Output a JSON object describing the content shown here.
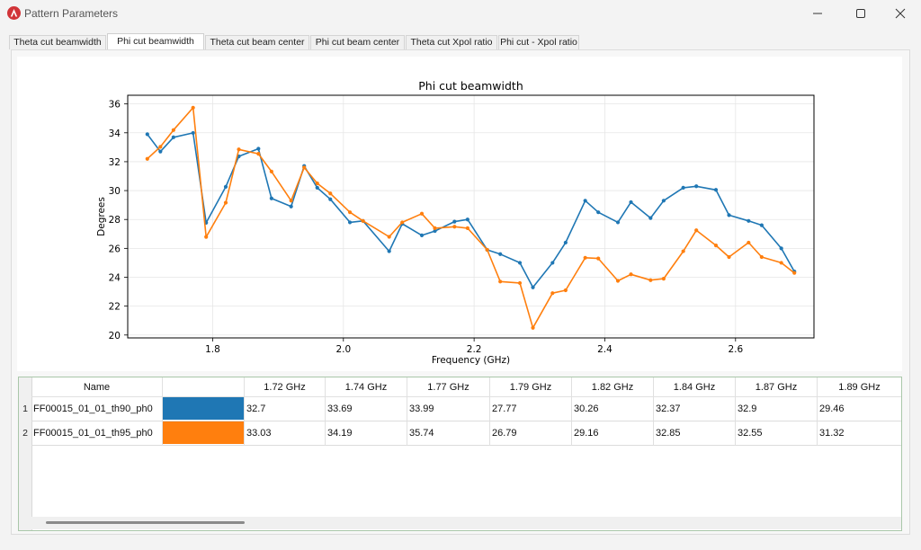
{
  "window": {
    "title": "Pattern Parameters"
  },
  "tabs": [
    {
      "label": "Theta cut beamwidth"
    },
    {
      "label": "Phi cut beamwidth"
    },
    {
      "label": "Theta cut beam center"
    },
    {
      "label": "Phi cut beam center"
    },
    {
      "label": "Theta cut Xpol ratio"
    },
    {
      "label": "Phi cut - Xpol ratio"
    }
  ],
  "active_tab": "Phi cut beamwidth",
  "icons": {
    "app": "app-logo-icon",
    "minimize": "minimize-icon",
    "maximize": "maximize-icon",
    "close": "close-icon"
  },
  "chart_data": {
    "type": "line",
    "title": "Phi cut beamwidth",
    "xlabel": "Frequency (GHz)",
    "ylabel": "Degrees",
    "xlim": [
      1.67,
      2.72
    ],
    "ylim": [
      19.8,
      36.6
    ],
    "xticks": [
      "1.8",
      "2.0",
      "2.2",
      "2.4",
      "2.6"
    ],
    "xtick_values": [
      1.8,
      2.0,
      2.2,
      2.4,
      2.6
    ],
    "yticks": [
      "20",
      "22",
      "24",
      "26",
      "28",
      "30",
      "32",
      "34",
      "36"
    ],
    "ytick_values": [
      20,
      22,
      24,
      26,
      28,
      30,
      32,
      34,
      36
    ],
    "grid": true,
    "x": [
      1.7,
      1.72,
      1.74,
      1.77,
      1.79,
      1.82,
      1.84,
      1.87,
      1.89,
      1.92,
      1.94,
      1.96,
      1.98,
      2.01,
      2.03,
      2.07,
      2.09,
      2.12,
      2.14,
      2.17,
      2.19,
      2.22,
      2.24,
      2.27,
      2.29,
      2.32,
      2.34,
      2.37,
      2.39,
      2.42,
      2.44,
      2.47,
      2.49,
      2.52,
      2.54,
      2.57,
      2.59,
      2.62,
      2.64,
      2.67,
      2.69
    ],
    "series": [
      {
        "name": "FF00015_01_01_th90_ph0",
        "color": "#1f77b4",
        "values": [
          33.9,
          32.7,
          33.69,
          33.99,
          27.77,
          30.26,
          32.37,
          32.9,
          29.46,
          28.9,
          31.7,
          30.2,
          29.4,
          27.8,
          27.9,
          25.8,
          27.7,
          26.9,
          27.2,
          27.85,
          28.0,
          25.9,
          25.6,
          25.0,
          23.3,
          25.0,
          26.4,
          29.3,
          28.5,
          27.8,
          29.2,
          28.1,
          29.3,
          30.2,
          30.3,
          30.05,
          28.3,
          27.9,
          27.6,
          26.0,
          24.4
        ]
      },
      {
        "name": "FF00015_01_01_th95_ph0",
        "color": "#ff7f0e",
        "values": [
          32.2,
          33.03,
          34.19,
          35.74,
          26.79,
          29.16,
          32.85,
          32.55,
          31.32,
          29.3,
          31.6,
          30.5,
          29.8,
          28.5,
          27.9,
          26.8,
          27.8,
          28.4,
          27.4,
          27.5,
          27.4,
          25.9,
          23.7,
          23.6,
          20.5,
          22.9,
          23.1,
          25.35,
          25.3,
          23.75,
          24.2,
          23.8,
          23.9,
          25.8,
          27.25,
          26.2,
          25.4,
          26.4,
          25.4,
          25.0,
          24.3
        ]
      }
    ]
  },
  "table": {
    "headers": [
      "Name",
      "",
      "1.72 GHz",
      "1.74 GHz",
      "1.77 GHz",
      "1.79 GHz",
      "1.82 GHz",
      "1.84 GHz",
      "1.87 GHz",
      "1.89 GHz"
    ],
    "rows": [
      {
        "num": "1",
        "name": "FF00015_01_01_th90_ph0",
        "color": "#1f77b4",
        "values": [
          "32.7",
          "33.69",
          "33.99",
          "27.77",
          "30.26",
          "32.37",
          "32.9",
          "29.46"
        ]
      },
      {
        "num": "2",
        "name": "FF00015_01_01_th95_ph0",
        "color": "#ff7f0e",
        "values": [
          "33.03",
          "34.19",
          "35.74",
          "26.79",
          "29.16",
          "32.85",
          "32.55",
          "31.32"
        ]
      }
    ]
  }
}
